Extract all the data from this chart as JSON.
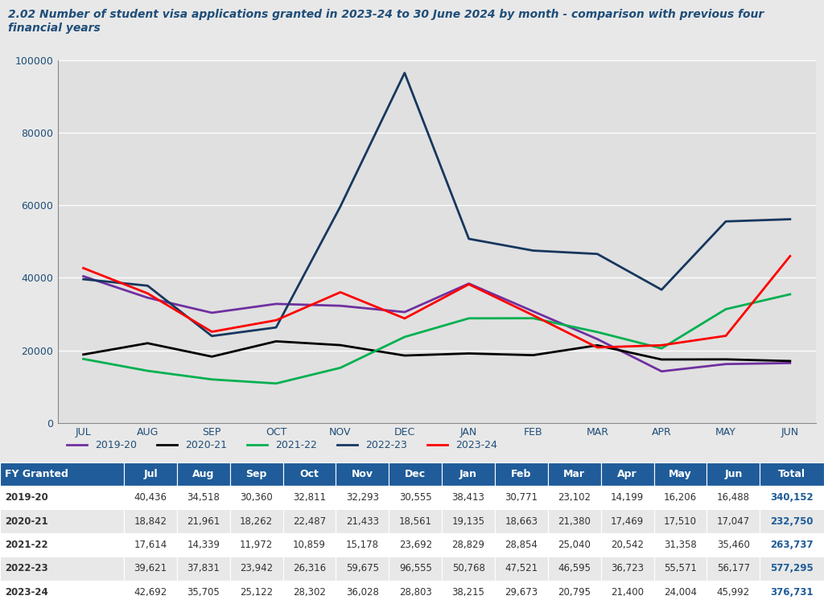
{
  "title_line1": "2.02 Number of student visa applications granted in 2023-24 to 30 June 2024 by month - comparison with previous four",
  "title_line2": "financial years",
  "title_color": "#1F4E79",
  "months": [
    "JUL",
    "AUG",
    "SEP",
    "OCT",
    "NOV",
    "DEC",
    "JAN",
    "FEB",
    "MAR",
    "APR",
    "MAY",
    "JUN"
  ],
  "series_order": [
    "2019-20",
    "2020-21",
    "2021-22",
    "2022-23",
    "2023-24"
  ],
  "series": {
    "2019-20": {
      "values": [
        40436,
        34518,
        30360,
        32811,
        32293,
        30555,
        38413,
        30771,
        23102,
        14199,
        16206,
        16488
      ],
      "color": "#7030A0"
    },
    "2020-21": {
      "values": [
        18842,
        21961,
        18262,
        22487,
        21433,
        18561,
        19135,
        18663,
        21380,
        17469,
        17510,
        17047
      ],
      "color": "#000000"
    },
    "2021-22": {
      "values": [
        17614,
        14339,
        11972,
        10859,
        15178,
        23692,
        28829,
        28854,
        25040,
        20542,
        31358,
        35460
      ],
      "color": "#00B050"
    },
    "2022-23": {
      "values": [
        39621,
        37831,
        23942,
        26316,
        59675,
        96555,
        50768,
        47521,
        46595,
        36723,
        55571,
        56177
      ],
      "color": "#17375E"
    },
    "2023-24": {
      "values": [
        42692,
        35705,
        25122,
        28302,
        36028,
        28803,
        38215,
        29673,
        20795,
        21400,
        24004,
        45992
      ],
      "color": "#FF0000"
    }
  },
  "ylim": [
    0,
    100000
  ],
  "yticks": [
    0,
    20000,
    40000,
    60000,
    80000,
    100000
  ],
  "fig_bg_color": "#E8E8E8",
  "plot_bg_color": "#E0E0E0",
  "header_bg_color": "#1F5C99",
  "header_text_color": "#FFFFFF",
  "table_row_colors": [
    "#FFFFFF",
    "#E8E8E8"
  ],
  "table_text_color": "#333333",
  "total_text_color": "#1F5C99",
  "grid_color": "#FFFFFF",
  "axis_text_color": "#1F4E79",
  "table_headers": [
    "FY Granted",
    "Jul",
    "Aug",
    "Sep",
    "Oct",
    "Nov",
    "Dec",
    "Jan",
    "Feb",
    "Mar",
    "Apr",
    "May",
    "Jun",
    "Total"
  ],
  "table_rows": [
    [
      "2019-20",
      "40,436",
      "34,518",
      "30,360",
      "32,811",
      "32,293",
      "30,555",
      "38,413",
      "30,771",
      "23,102",
      "14,199",
      "16,206",
      "16,488",
      "340,152"
    ],
    [
      "2020-21",
      "18,842",
      "21,961",
      "18,262",
      "22,487",
      "21,433",
      "18,561",
      "19,135",
      "18,663",
      "21,380",
      "17,469",
      "17,510",
      "17,047",
      "232,750"
    ],
    [
      "2021-22",
      "17,614",
      "14,339",
      "11,972",
      "10,859",
      "15,178",
      "23,692",
      "28,829",
      "28,854",
      "25,040",
      "20,542",
      "31,358",
      "35,460",
      "263,737"
    ],
    [
      "2022-23",
      "39,621",
      "37,831",
      "23,942",
      "26,316",
      "59,675",
      "96,555",
      "50,768",
      "47,521",
      "46,595",
      "36,723",
      "55,571",
      "56,177",
      "577,295"
    ],
    [
      "2023-24",
      "42,692",
      "35,705",
      "25,122",
      "28,302",
      "36,028",
      "28,803",
      "38,215",
      "29,673",
      "20,795",
      "21,400",
      "24,004",
      "45,992",
      "376,731"
    ]
  ],
  "col_widths": [
    0.145,
    0.062,
    0.062,
    0.062,
    0.062,
    0.062,
    0.062,
    0.062,
    0.062,
    0.062,
    0.062,
    0.062,
    0.062,
    0.075
  ]
}
